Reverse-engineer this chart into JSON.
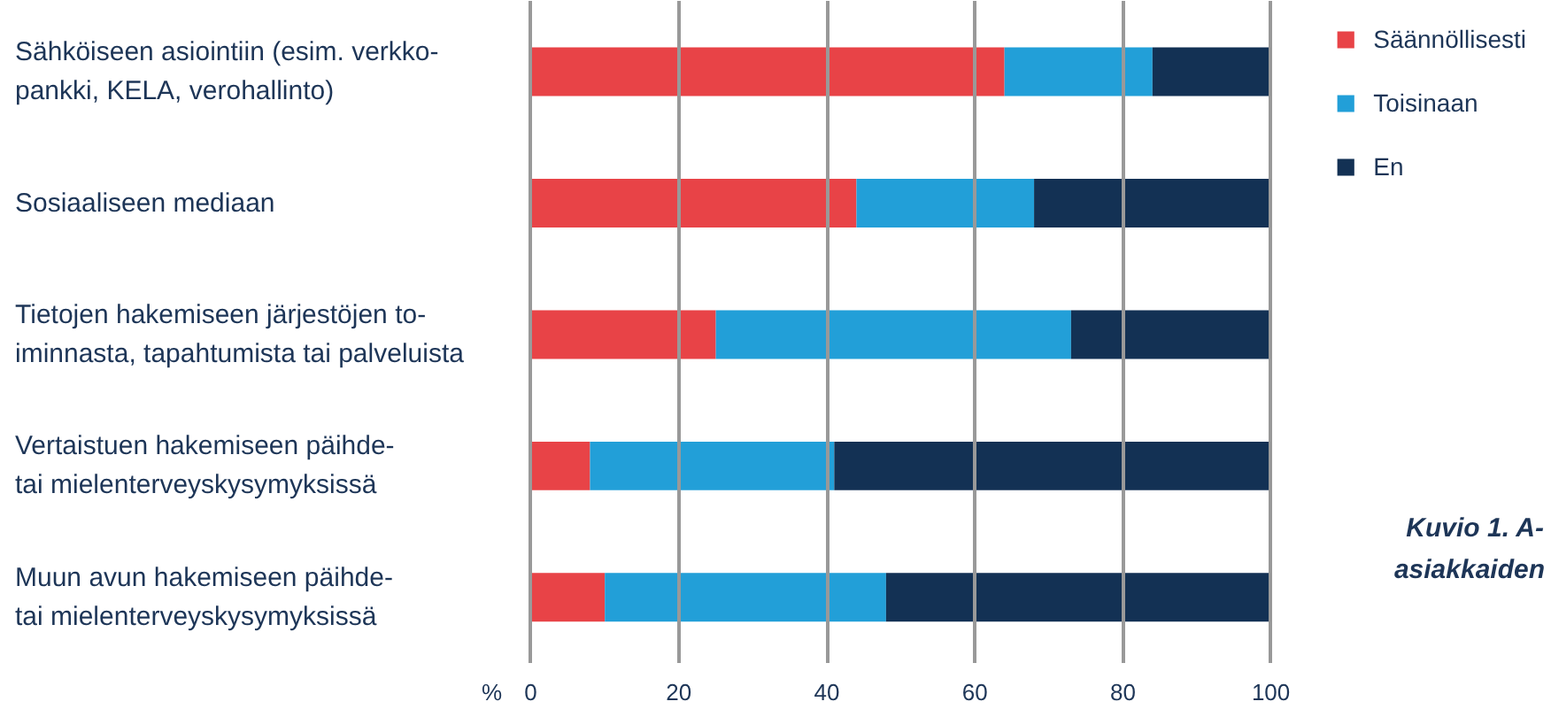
{
  "chart_data": {
    "type": "bar",
    "orientation": "horizontal",
    "stacked": true,
    "categories": [
      "Sähköiseen asiointiin (esim. verkko-\npankki, KELA, verohallinto)",
      "Sosiaaliseen mediaan",
      "Tietojen hakemiseen järjestöjen to-\niminnasta, tapahtumista tai palveluista",
      "Vertaistuen hakemiseen päihde-\ntai mielenterveyskysymyksissä",
      "Muun avun hakemiseen päihde-\ntai mielenterveyskysymyksissä"
    ],
    "series": [
      {
        "name": "Säännöllisesti",
        "color": "#e84347",
        "values": [
          64,
          44,
          25,
          8,
          10
        ]
      },
      {
        "name": "Toisinaan",
        "color": "#229fd8",
        "values": [
          20,
          24,
          48,
          33,
          38
        ]
      },
      {
        "name": "En",
        "color": "#133154",
        "values": [
          16,
          32,
          27,
          59,
          52
        ]
      }
    ],
    "xlabel": "%",
    "xlim": [
      0,
      100
    ],
    "xticks": [
      0,
      20,
      40,
      60,
      80,
      100
    ],
    "grid": "x",
    "legend": "top right",
    "annotations": [
      "Kuvio 1. A-",
      "asiakkaiden"
    ]
  }
}
